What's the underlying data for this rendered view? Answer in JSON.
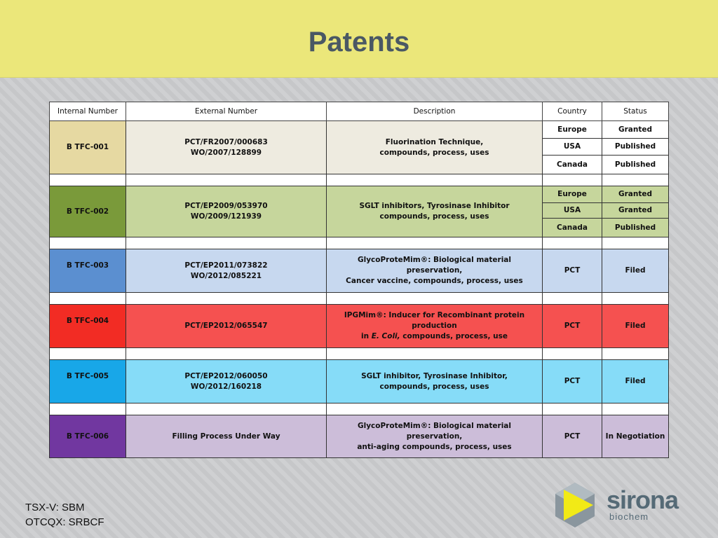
{
  "title": "Patents",
  "headers": {
    "internal": "Internal Number",
    "external": "External Number",
    "description": "Description",
    "country": "Country",
    "status": "Status"
  },
  "rows": [
    {
      "id": "B TFC-001",
      "ext1": "PCT/FR2007/000683",
      "ext2": "WO/2007/128899",
      "desc1": "Fluorination Technique,",
      "desc2": "compounds, process, uses",
      "entries": [
        {
          "country": "Europe",
          "status": "Granted"
        },
        {
          "country": "USA",
          "status": "Published"
        },
        {
          "country": "Canada",
          "status": "Published"
        }
      ]
    },
    {
      "id": "B TFC-002",
      "ext1": "PCT/EP2009/053970",
      "ext2": "WO/2009/121939",
      "desc1": "SGLT inhibitors, Tyrosinase Inhibitor",
      "desc2": "compounds, process, uses",
      "entries": [
        {
          "country": "Europe",
          "status": "Granted"
        },
        {
          "country": "USA",
          "status": "Granted"
        },
        {
          "country": "Canada",
          "status": "Published"
        }
      ]
    },
    {
      "id": "B TFC-003",
      "ext1": "PCT/EP2011/073822",
      "ext2": "WO/2012/085221",
      "desc1": "GlycoProteMim®: Biological material preservation,",
      "desc2": "Cancer vaccine, compounds, process, uses",
      "country": "PCT",
      "status": "Filed"
    },
    {
      "id": "B TFC-004",
      "ext1": "PCT/EP2012/065547",
      "desc1": "IPGMim®: Inducer for  Recombinant protein production",
      "desc2a": "in ",
      "desc2b": "E. Coli,",
      "desc2c": " compounds, process, use",
      "country": "PCT",
      "status": "Filed"
    },
    {
      "id": "B TFC-005",
      "ext1": "PCT/EP2012/060050",
      "ext2": "WO/2012/160218",
      "desc1": "SGLT inhibitor, Tyrosinase Inhibitor,",
      "desc2": "compounds, process, uses",
      "country": "PCT",
      "status": "Filed"
    },
    {
      "id": "B TFC-006",
      "ext1": "Filling Process Under Way",
      "desc1": "GlycoProteMim®: Biological material preservation,",
      "desc2": "anti-aging compounds, process, uses",
      "country": "PCT",
      "status": "In Negotiation"
    }
  ],
  "footer": {
    "line1": "TSX-V: SBM",
    "line2": "OTCQX: SRBCF"
  },
  "logo": {
    "word": "sirona",
    "sub": "biochem"
  },
  "colors": {
    "banner": "#ebe77a",
    "title": "#4a5864"
  }
}
